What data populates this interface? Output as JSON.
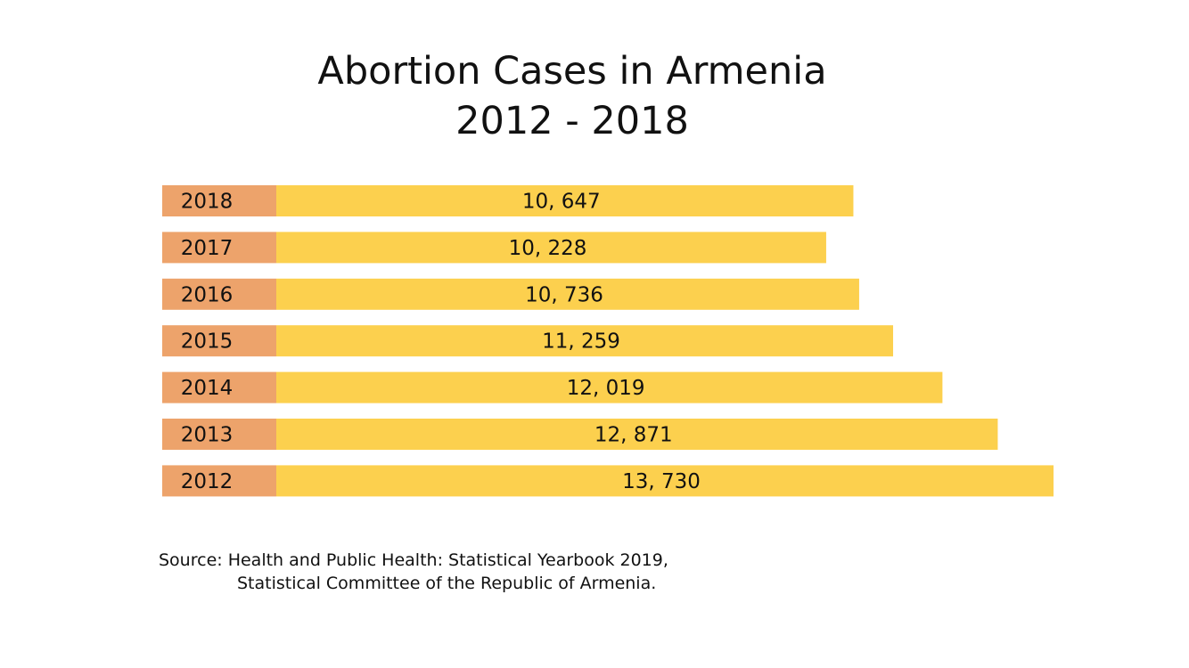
{
  "chart_data": {
    "type": "bar",
    "orientation": "horizontal",
    "title": "Abortion Cases in Armenia",
    "subtitle": "2012 - 2018",
    "categories": [
      "2018",
      "2017",
      "2016",
      "2015",
      "2014",
      "2013",
      "2012"
    ],
    "values": [
      10647,
      10228,
      10736,
      11259,
      12019,
      12871,
      13730
    ],
    "value_labels": [
      "10, 647",
      "10, 228",
      "10, 736",
      "11, 259",
      "12, 019",
      "12, 871",
      "13, 730"
    ],
    "colors": {
      "bar": "#fcd04e",
      "label_box": "#eda36b"
    }
  },
  "source": {
    "line1": "Source: Health and Public Health: Statistical Yearbook 2019,",
    "line2": "Statistical Committee of the Republic of Armenia."
  }
}
